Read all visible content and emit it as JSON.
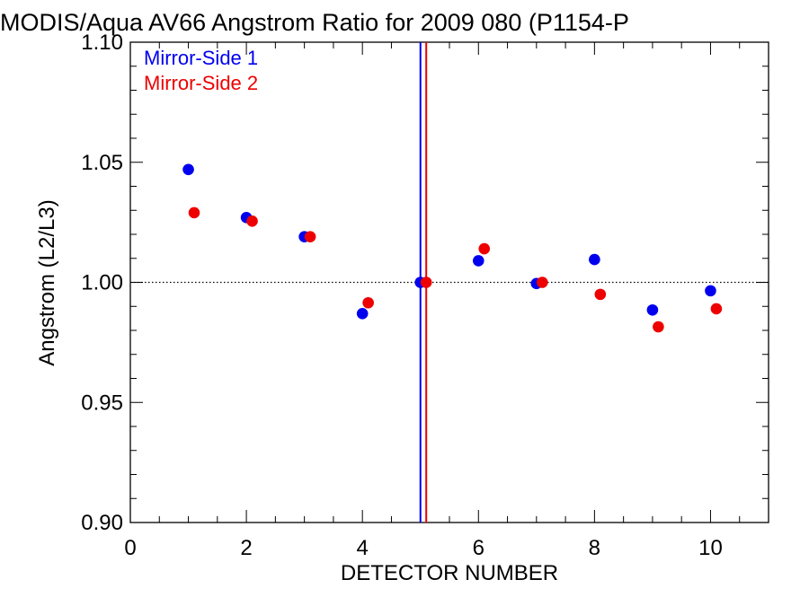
{
  "chart_data": {
    "type": "scatter",
    "title": "MODIS/Aqua AV66 Angstrom Ratio for 2009 080 (P1154-P",
    "xlabel": "DETECTOR NUMBER",
    "ylabel": "Angstrom (L2/L3)",
    "xlim": [
      0,
      11
    ],
    "ylim": [
      0.9,
      1.1
    ],
    "xticks": [
      "0",
      "2",
      "4",
      "6",
      "8",
      "10"
    ],
    "yticks": [
      "0.90",
      "0.95",
      "1.00",
      "1.05",
      "1.10"
    ],
    "reference_line_y": 1.0,
    "vertical_lines": [
      {
        "x": 5.0,
        "color": "#0000ee"
      },
      {
        "x": 5.1,
        "color": "#ee0000"
      }
    ],
    "legend_position": "top-left",
    "series": [
      {
        "name": "Mirror-Side 1",
        "color": "#0000ee",
        "x": [
          1,
          2,
          3,
          4,
          5,
          6,
          7,
          8,
          9,
          10
        ],
        "y": [
          1.047,
          1.027,
          1.019,
          0.987,
          1.0,
          1.009,
          0.9995,
          1.0095,
          0.9885,
          0.9965
        ]
      },
      {
        "name": "Mirror-Side 2",
        "color": "#ee0000",
        "x": [
          1.1,
          2.1,
          3.1,
          4.1,
          5.1,
          6.1,
          7.1,
          8.1,
          9.1,
          10.1
        ],
        "y": [
          1.029,
          1.0255,
          1.019,
          0.9915,
          1.0,
          1.014,
          1.0,
          0.995,
          0.9815,
          0.989
        ]
      }
    ]
  }
}
